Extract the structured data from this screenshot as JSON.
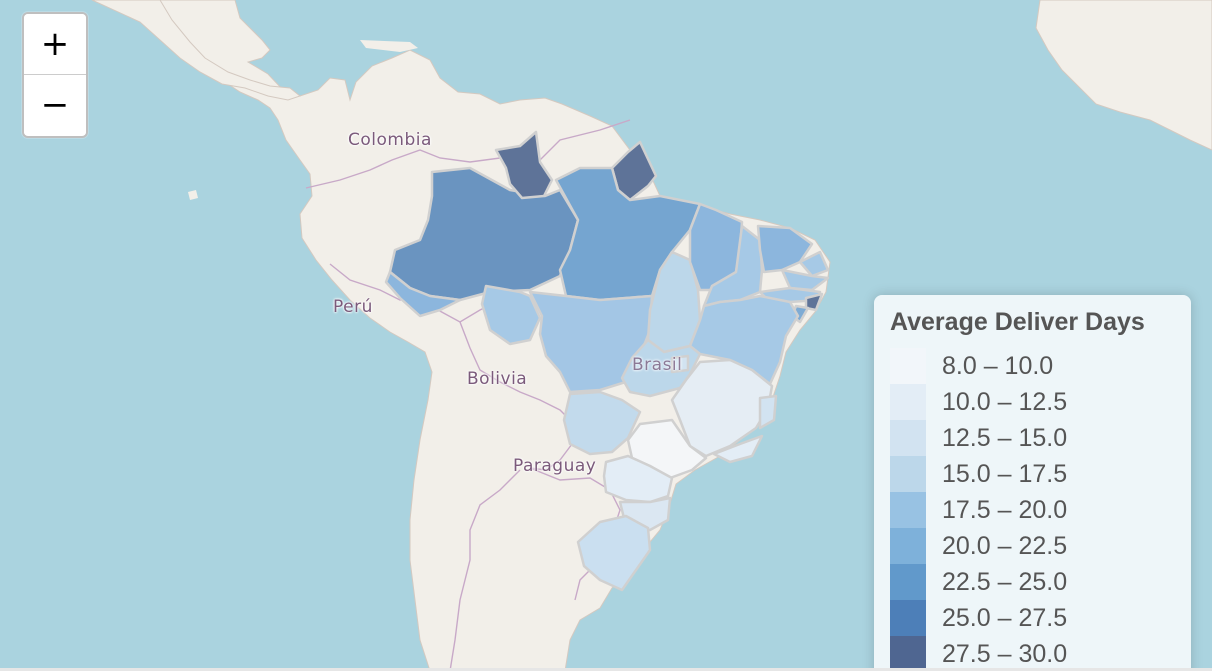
{
  "zoom": {
    "in_label": "+",
    "out_label": "−"
  },
  "place_labels": {
    "colombia": "Colombia",
    "peru": "Perú",
    "bolivia": "Bolivia",
    "paraguay": "Paraguay",
    "brasil": "Brasil"
  },
  "legend": {
    "title": "Average Deliver Days",
    "items": [
      {
        "label": "8.0 – 10.0",
        "color": "#f2f6fa"
      },
      {
        "label": "10.0 – 12.5",
        "color": "#e3edf6"
      },
      {
        "label": "12.5 – 15.0",
        "color": "#d2e3f1"
      },
      {
        "label": "15.0 – 17.5",
        "color": "#bcd7ea"
      },
      {
        "label": "17.5 – 20.0",
        "color": "#98c2e3"
      },
      {
        "label": "20.0 – 22.5",
        "color": "#7eb1da"
      },
      {
        "label": "22.5 – 25.0",
        "color": "#6199cb"
      },
      {
        "label": "25.0 – 27.5",
        "color": "#4d7fb8"
      },
      {
        "label": "27.5 – 30.0",
        "color": "#4f6691"
      }
    ]
  },
  "map_colors": {
    "ocean": "#aad3df",
    "land": "#f2efe9",
    "border": "#c8a9c8",
    "state_border": "#cfcfcf"
  }
}
